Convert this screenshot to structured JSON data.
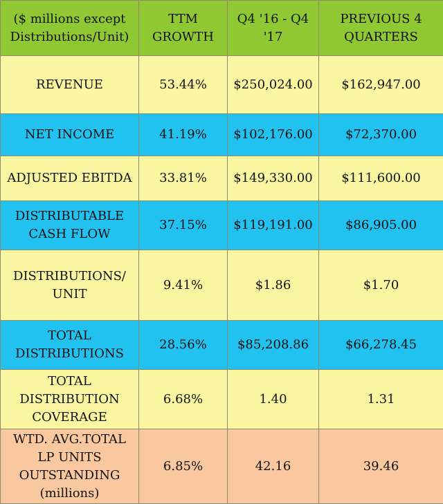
{
  "header": {
    "col0": "($ millions except\nDistributions/Unit)",
    "col1": "TTM\nGROWTH",
    "col2": "Q4 '16 - Q4\n'17",
    "col3": "PREVIOUS 4\nQUARTERS"
  },
  "rows": [
    {
      "label": "REVENUE",
      "growth": "53.44%",
      "current": "$250,024.00",
      "previous": "$162,947.00"
    },
    {
      "label": "NET INCOME",
      "growth": "41.19%",
      "current": "$102,176.00",
      "previous": "$72,370.00"
    },
    {
      "label": "ADJUSTED EBITDA",
      "growth": "33.81%",
      "current": "$149,330.00",
      "previous": "$111,600.00"
    },
    {
      "label": "DISTRIBUTABLE\nCASH FLOW",
      "growth": "37.15%",
      "current": "$119,191.00",
      "previous": "$86,905.00"
    },
    {
      "label": "DISTRIBUTIONS/\nUNIT",
      "growth": "9.41%",
      "current": "$1.86",
      "previous": "$1.70"
    },
    {
      "label": "TOTAL\nDISTRIBUTIONS",
      "growth": "28.56%",
      "current": "$85,208.86",
      "previous": "$66,278.45"
    },
    {
      "label": "TOTAL\nDISTRIBUTION\nCOVERAGE",
      "growth": "6.68%",
      "current": "1.40",
      "previous": "1.31"
    },
    {
      "label": "WTD. AVG.TOTAL\nLP UNITS\nOUTSTANDING\n(millions)",
      "growth": "6.85%",
      "current": "42.16",
      "previous": "39.46"
    }
  ],
  "colors": {
    "header": "#8fc832",
    "yellow_row": "#fbf6a1",
    "blue_row": "#21c2f0",
    "peach_row": "#f9c89e"
  }
}
